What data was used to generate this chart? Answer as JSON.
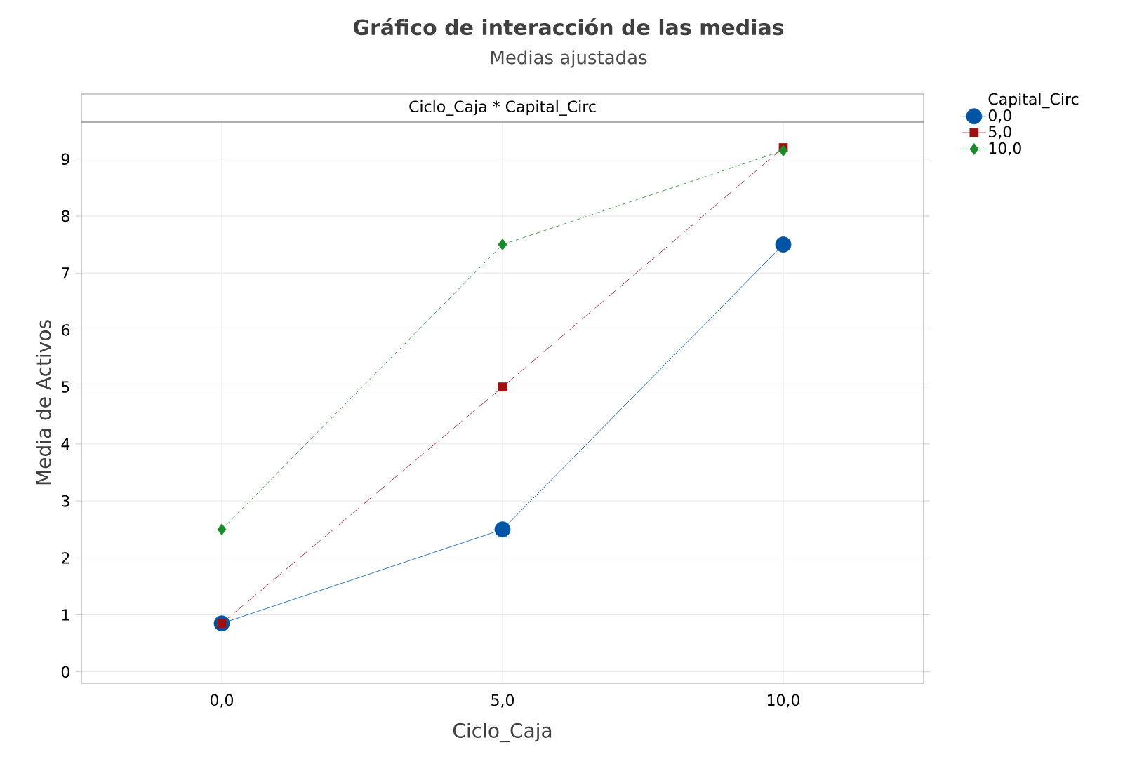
{
  "chart_data": {
    "type": "line",
    "title": "Gráfico de interacción de las medias",
    "subtitle": "Medias ajustadas",
    "xlabel": "Ciclo_Caja",
    "ylabel": "Media de Activos",
    "legend_title": "Capital_Circ",
    "annotations": [
      "Ciclo_Caja * Capital_Circ"
    ],
    "categories": [
      "0,0",
      "5,0",
      "10,0"
    ],
    "series": [
      {
        "name": "0,0",
        "color": "#0054a6",
        "values": [
          0.85,
          2.5,
          7.5
        ],
        "marker": "circle",
        "line_style": "solid"
      },
      {
        "name": "5,0",
        "color": "#a01010",
        "values": [
          0.85,
          5.0,
          9.2
        ],
        "marker": "square",
        "line_style": "dashed"
      },
      {
        "name": "10,0",
        "color": "#1a8a2a",
        "values": [
          2.5,
          7.5,
          9.15
        ],
        "marker": "diamond",
        "line_style": "dotted"
      }
    ],
    "ylim": [
      -0.2,
      9.65
    ],
    "yticks": [
      0,
      1,
      2,
      3,
      4,
      5,
      6,
      7,
      8,
      9
    ],
    "grid": true,
    "legend": "top right"
  }
}
